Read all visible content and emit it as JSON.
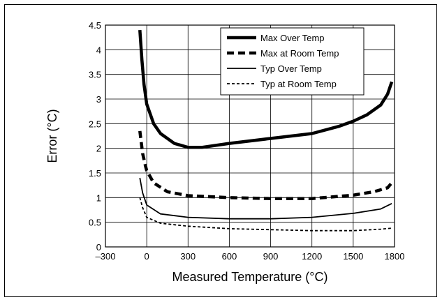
{
  "chart_data": {
    "type": "line",
    "xlabel": "Measured Temperature (°C)",
    "ylabel": "Error (°C)",
    "xlim": [
      -300,
      1800
    ],
    "ylim": [
      0,
      4.5
    ],
    "x_ticks": [
      "–300",
      "0",
      "300",
      "600",
      "900",
      "1200",
      "1500",
      "1800"
    ],
    "y_ticks": [
      "0",
      "0.5",
      "1",
      "1.5",
      "2",
      "2.5",
      "3",
      "3.5",
      "4",
      "4.5"
    ],
    "grid": true,
    "legend_position": "top-right",
    "series": [
      {
        "name": "Max Over Temp",
        "style": "thick-solid",
        "points": [
          [
            -50,
            4.4
          ],
          [
            -35,
            3.8
          ],
          [
            -20,
            3.3
          ],
          [
            0,
            2.9
          ],
          [
            50,
            2.5
          ],
          [
            100,
            2.3
          ],
          [
            200,
            2.1
          ],
          [
            300,
            2.02
          ],
          [
            400,
            2.02
          ],
          [
            600,
            2.1
          ],
          [
            900,
            2.2
          ],
          [
            1200,
            2.3
          ],
          [
            1400,
            2.45
          ],
          [
            1500,
            2.55
          ],
          [
            1600,
            2.68
          ],
          [
            1700,
            2.88
          ],
          [
            1750,
            3.1
          ],
          [
            1780,
            3.35
          ]
        ]
      },
      {
        "name": "Max at Room Temp",
        "style": "thick-dashed",
        "points": [
          [
            -50,
            2.35
          ],
          [
            -30,
            1.9
          ],
          [
            -10,
            1.65
          ],
          [
            0,
            1.55
          ],
          [
            50,
            1.3
          ],
          [
            150,
            1.12
          ],
          [
            300,
            1.04
          ],
          [
            600,
            1.0
          ],
          [
            900,
            0.98
          ],
          [
            1200,
            0.98
          ],
          [
            1500,
            1.05
          ],
          [
            1650,
            1.12
          ],
          [
            1750,
            1.2
          ],
          [
            1780,
            1.3
          ]
        ]
      },
      {
        "name": "Typ Over Temp",
        "style": "solid",
        "points": [
          [
            -50,
            1.4
          ],
          [
            -30,
            1.1
          ],
          [
            0,
            0.85
          ],
          [
            100,
            0.67
          ],
          [
            300,
            0.6
          ],
          [
            600,
            0.57
          ],
          [
            900,
            0.57
          ],
          [
            1200,
            0.6
          ],
          [
            1500,
            0.68
          ],
          [
            1700,
            0.77
          ],
          [
            1780,
            0.88
          ]
        ]
      },
      {
        "name": "Typ at Room Temp",
        "style": "thin-dashed",
        "points": [
          [
            -50,
            1.0
          ],
          [
            -30,
            0.8
          ],
          [
            0,
            0.6
          ],
          [
            100,
            0.48
          ],
          [
            300,
            0.42
          ],
          [
            600,
            0.37
          ],
          [
            900,
            0.35
          ],
          [
            1200,
            0.33
          ],
          [
            1500,
            0.33
          ],
          [
            1700,
            0.36
          ],
          [
            1780,
            0.38
          ]
        ]
      }
    ]
  }
}
